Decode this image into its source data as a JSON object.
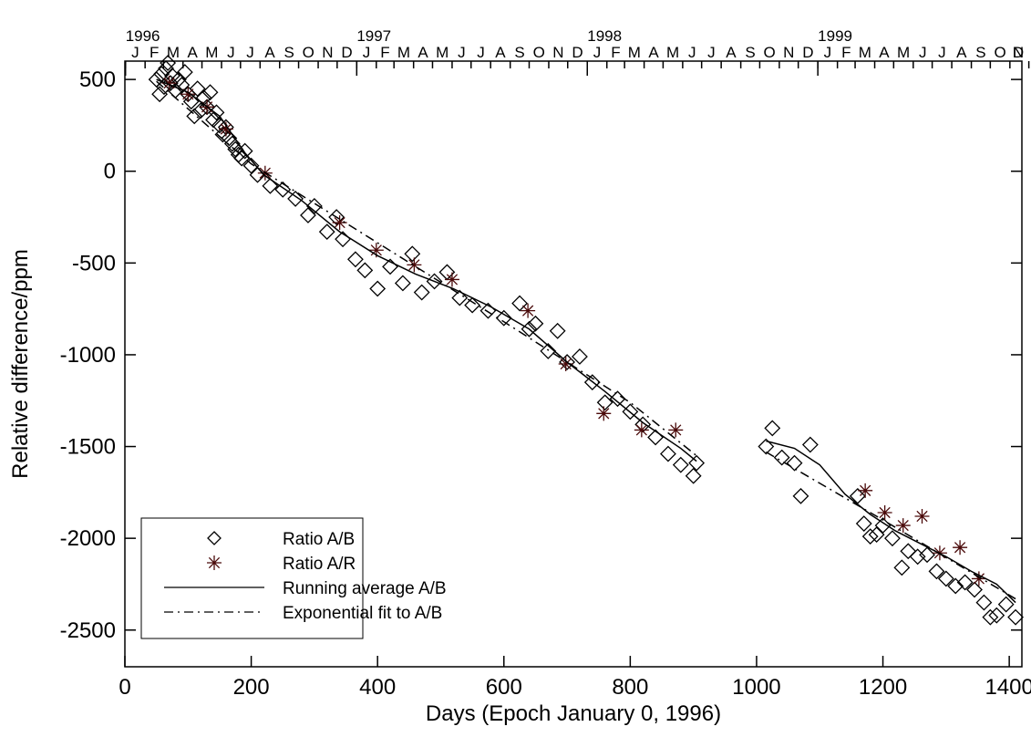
{
  "chart_data": {
    "type": "scatter",
    "xlabel": "Days (Epoch January 0, 1996)",
    "ylabel": "Relative difference/ppm",
    "xlim": [
      0,
      1420
    ],
    "ylim": [
      -2700,
      600
    ],
    "xticks": [
      0,
      200,
      400,
      600,
      800,
      1000,
      1200,
      1400
    ],
    "yticks": [
      500,
      0,
      -500,
      -1000,
      -1500,
      -2000,
      -2500
    ],
    "legend": "lower left",
    "top_axis": {
      "years": [
        {
          "value": 1,
          "label": "1996"
        },
        {
          "value": 367,
          "label": "1997"
        },
        {
          "value": 732,
          "label": "1998"
        },
        {
          "value": 1097,
          "label": "1999"
        }
      ],
      "months": [
        {
          "value": 1,
          "label": "J"
        },
        {
          "value": 32,
          "label": "F"
        },
        {
          "value": 61,
          "label": "M"
        },
        {
          "value": 92,
          "label": "A"
        },
        {
          "value": 122,
          "label": "M"
        },
        {
          "value": 153,
          "label": "J"
        },
        {
          "value": 183,
          "label": "J"
        },
        {
          "value": 214,
          "label": "A"
        },
        {
          "value": 245,
          "label": "S"
        },
        {
          "value": 275,
          "label": "O"
        },
        {
          "value": 306,
          "label": "N"
        },
        {
          "value": 336,
          "label": "D"
        },
        {
          "value": 367,
          "label": "J"
        },
        {
          "value": 398,
          "label": "F"
        },
        {
          "value": 426,
          "label": "M"
        },
        {
          "value": 457,
          "label": "A"
        },
        {
          "value": 487,
          "label": "M"
        },
        {
          "value": 518,
          "label": "J"
        },
        {
          "value": 548,
          "label": "J"
        },
        {
          "value": 579,
          "label": "A"
        },
        {
          "value": 610,
          "label": "S"
        },
        {
          "value": 640,
          "label": "O"
        },
        {
          "value": 671,
          "label": "N"
        },
        {
          "value": 701,
          "label": "D"
        },
        {
          "value": 732,
          "label": "J"
        },
        {
          "value": 763,
          "label": "F"
        },
        {
          "value": 791,
          "label": "M"
        },
        {
          "value": 822,
          "label": "A"
        },
        {
          "value": 852,
          "label": "M"
        },
        {
          "value": 883,
          "label": "J"
        },
        {
          "value": 913,
          "label": "J"
        },
        {
          "value": 944,
          "label": "A"
        },
        {
          "value": 975,
          "label": "S"
        },
        {
          "value": 1005,
          "label": "O"
        },
        {
          "value": 1036,
          "label": "N"
        },
        {
          "value": 1066,
          "label": "D"
        },
        {
          "value": 1097,
          "label": "J"
        },
        {
          "value": 1128,
          "label": "F"
        },
        {
          "value": 1156,
          "label": "M"
        },
        {
          "value": 1187,
          "label": "A"
        },
        {
          "value": 1217,
          "label": "M"
        },
        {
          "value": 1248,
          "label": "J"
        },
        {
          "value": 1278,
          "label": "J"
        },
        {
          "value": 1309,
          "label": "A"
        },
        {
          "value": 1340,
          "label": "S"
        },
        {
          "value": 1370,
          "label": "O"
        },
        {
          "value": 1401,
          "label": "N"
        },
        {
          "value": 1431,
          "label": "D"
        }
      ]
    },
    "series": [
      {
        "name": "Ratio A/B",
        "marker": "diamond",
        "color": "#000000",
        "x": [
          50,
          55,
          58,
          62,
          65,
          68,
          72,
          75,
          80,
          85,
          90,
          95,
          100,
          105,
          110,
          115,
          120,
          125,
          130,
          135,
          140,
          145,
          150,
          155,
          160,
          165,
          170,
          175,
          180,
          185,
          190,
          200,
          210,
          230,
          250,
          270,
          290,
          300,
          320,
          335,
          345,
          365,
          380,
          400,
          420,
          440,
          455,
          470,
          490,
          510,
          530,
          550,
          575,
          600,
          625,
          640,
          650,
          670,
          685,
          700,
          720,
          740,
          760,
          780,
          800,
          820,
          840,
          860,
          880,
          900,
          905,
          1015,
          1025,
          1040,
          1060,
          1070,
          1085,
          1160,
          1170,
          1180,
          1190,
          1200,
          1215,
          1230,
          1240,
          1255,
          1270,
          1285,
          1300,
          1315,
          1330,
          1345,
          1360,
          1370,
          1380,
          1395,
          1410
        ],
        "values": [
          500,
          420,
          530,
          460,
          560,
          590,
          480,
          520,
          440,
          500,
          470,
          540,
          420,
          380,
          300,
          450,
          330,
          400,
          350,
          430,
          280,
          320,
          250,
          200,
          240,
          180,
          150,
          120,
          90,
          70,
          110,
          30,
          -20,
          -80,
          -100,
          -150,
          -240,
          -190,
          -330,
          -250,
          -370,
          -480,
          -540,
          -640,
          -520,
          -610,
          -450,
          -660,
          -600,
          -550,
          -690,
          -730,
          -760,
          -800,
          -720,
          -860,
          -830,
          -980,
          -870,
          -1040,
          -1010,
          -1150,
          -1260,
          -1240,
          -1310,
          -1380,
          -1450,
          -1540,
          -1600,
          -1660,
          -1590,
          -1500,
          -1400,
          -1560,
          -1590,
          -1770,
          -1490,
          -1770,
          -1920,
          -1990,
          -1980,
          -1930,
          -2000,
          -2160,
          -2070,
          -2100,
          -2090,
          -2180,
          -2220,
          -2260,
          -2240,
          -2280,
          -2350,
          -2430,
          -2420,
          -2360,
          -2430
        ]
      },
      {
        "name": "Ratio A/R",
        "marker": "star",
        "color": "#4a0a0a",
        "x": [
          70,
          100,
          130,
          160,
          222,
          340,
          398,
          458,
          518,
          638,
          698,
          758,
          818,
          872,
          1172,
          1203,
          1232,
          1262,
          1290,
          1322,
          1352
        ],
        "values": [
          480,
          420,
          350,
          230,
          -10,
          -280,
          -430,
          -510,
          -590,
          -760,
          -1050,
          -1320,
          -1410,
          -1410,
          -1740,
          -1860,
          -1930,
          -1880,
          -2080,
          -2050,
          -2220
        ]
      },
      {
        "name": "Running average A/B",
        "marker": "line",
        "dash": "solid",
        "color": "#000000",
        "x": [
          50,
          100,
          150,
          190,
          220,
          280,
          340,
          400,
          460,
          520,
          580,
          640,
          700,
          760,
          820,
          880,
          905,
          null,
          1015,
          1060,
          1100,
          1140,
          1180,
          1220,
          1260,
          1300,
          1340,
          1380,
          1410
        ],
        "values": [
          500,
          430,
          300,
          100,
          -20,
          -160,
          -330,
          -460,
          -560,
          -640,
          -740,
          -860,
          -1040,
          -1200,
          -1370,
          -1510,
          -1580,
          null,
          -1470,
          -1510,
          -1600,
          -1760,
          -1870,
          -1960,
          -2030,
          -2100,
          -2180,
          -2250,
          -2350
        ]
      },
      {
        "name": "Exponential fit to A/B",
        "marker": "line",
        "dash": "dashdot",
        "color": "#000000",
        "x": [
          50,
          200,
          400,
          600,
          800,
          905,
          null,
          1015,
          1200,
          1410
        ],
        "values": [
          490,
          40,
          -390,
          -820,
          -1260,
          -1550,
          null,
          -1530,
          -1900,
          -2330
        ]
      }
    ]
  }
}
